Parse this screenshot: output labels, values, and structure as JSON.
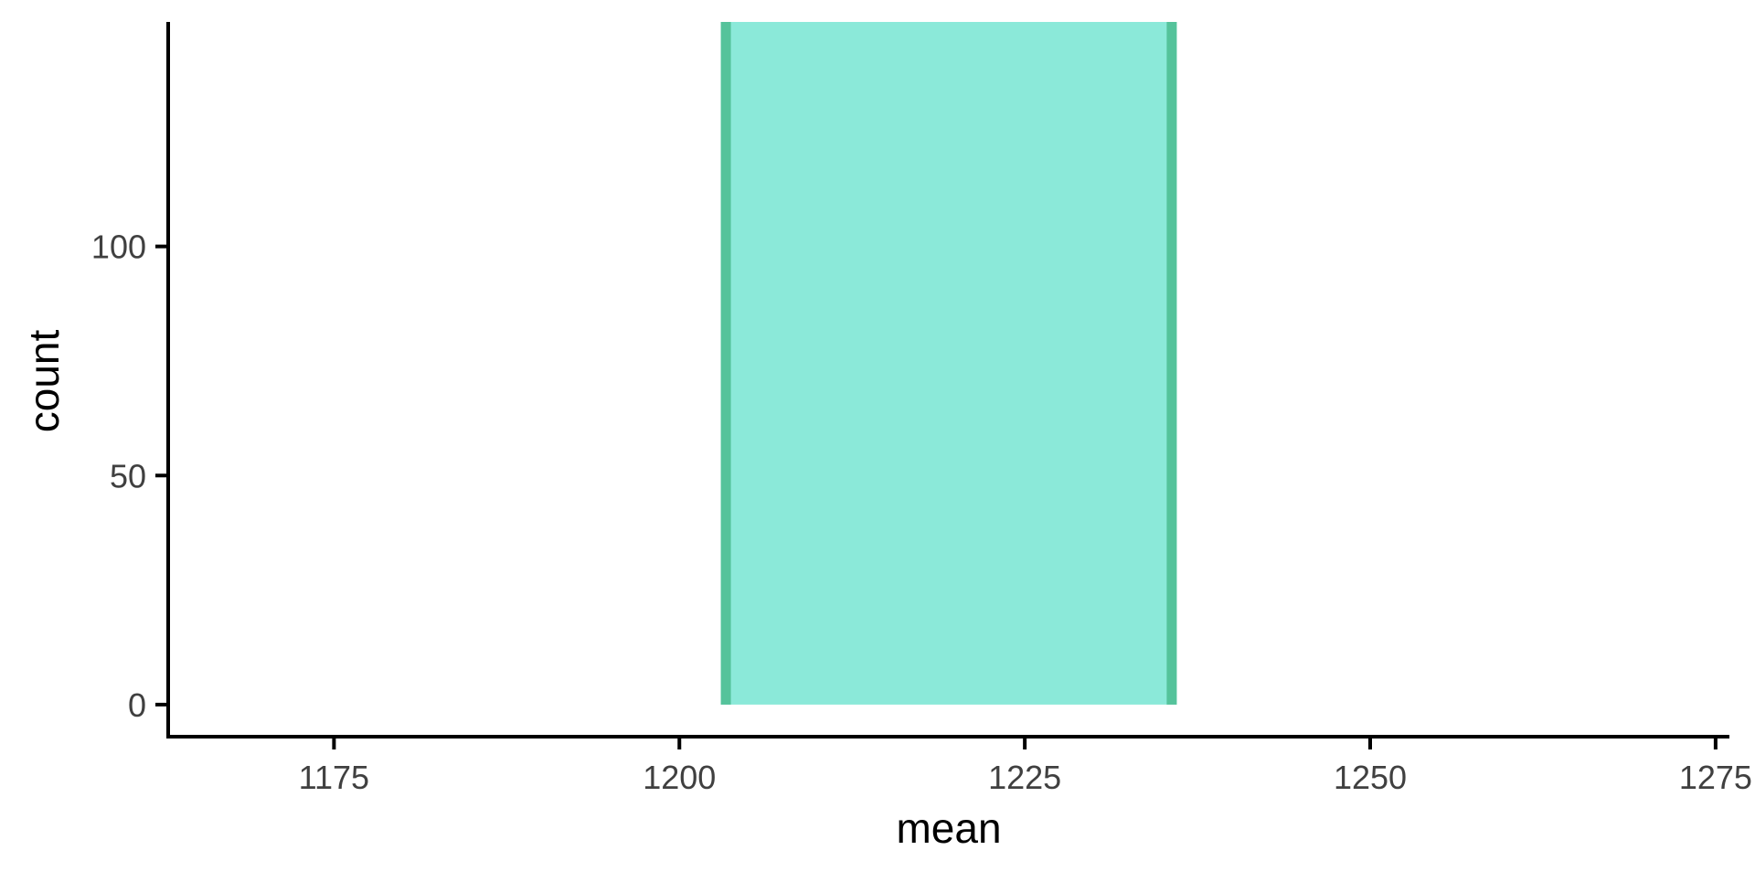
{
  "chart_data": {
    "type": "bar",
    "bars": [
      {
        "x_start": 1203,
        "x_end": 1236,
        "count": 149
      }
    ],
    "xlabel": "mean",
    "ylabel": "count",
    "xlim": [
      1163,
      1276
    ],
    "ylim": [
      -7,
      149
    ],
    "x_ticks": [
      1175,
      1200,
      1225,
      1250,
      1275
    ],
    "y_ticks": [
      0,
      50,
      100
    ],
    "grid": false,
    "colors": {
      "bar_fill": "#8be9d9",
      "bar_edge": "#55c39b",
      "axis": "#000000",
      "tick_text": "#404040",
      "title_text": "#000000"
    }
  }
}
